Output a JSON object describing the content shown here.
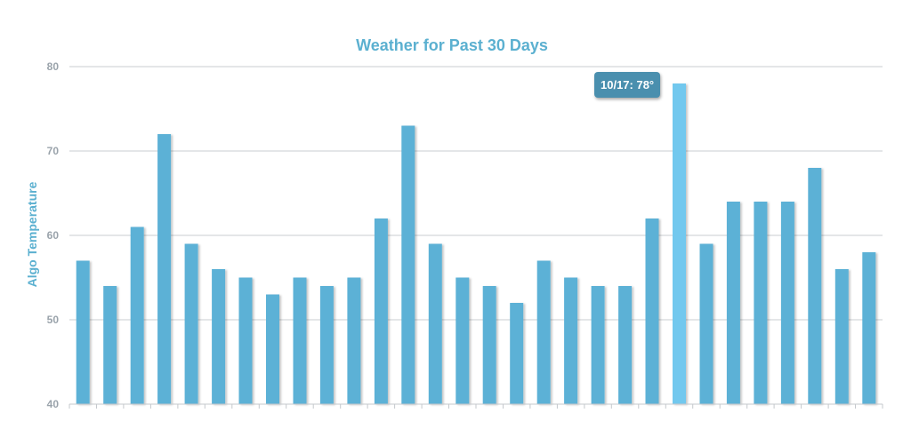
{
  "chart_data": {
    "type": "bar",
    "title": "Weather for Past 30 Days",
    "xlabel": "",
    "ylabel": "Algo Temperature",
    "ylim": [
      40,
      80
    ],
    "yticks": [
      40,
      50,
      60,
      70,
      80
    ],
    "grid": true,
    "values": [
      57,
      54,
      61,
      72,
      59,
      56,
      55,
      53,
      55,
      54,
      55,
      62,
      73,
      59,
      55,
      54,
      52,
      57,
      55,
      54,
      54,
      62,
      78,
      59,
      64,
      64,
      64,
      68,
      56,
      58
    ],
    "highlighted_index": 22,
    "tooltip": "10/17: 78°"
  },
  "colors": {
    "bar": "#5bb1d6",
    "bar_highlight": "#72c8ee",
    "title": "#5bb0d0",
    "ylabel": "#5bb0d0",
    "tooltip_bg": "#4a8fae"
  }
}
